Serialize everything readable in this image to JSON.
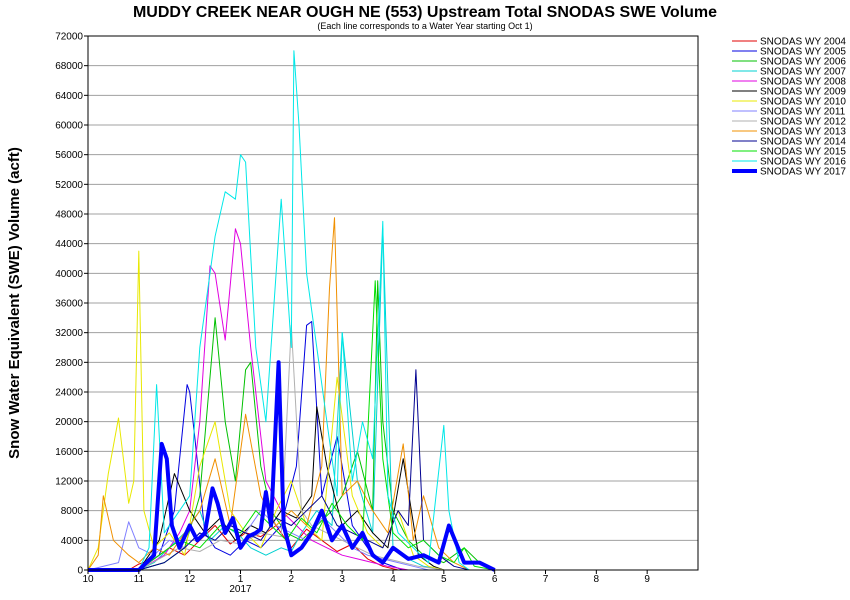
{
  "chart_data": {
    "type": "line",
    "title": "MUDDY CREEK NEAR OUGH NE (553) Upstream Total SNODAS SWE Volume",
    "subtitle": "(Each line corresponds to a Water Year starting Oct 1)",
    "ylabel": "Snow Water Equivalent (SWE) Volume (acft)",
    "xlabel": "",
    "year_label": "2017",
    "xlim": [
      10,
      22
    ],
    "ylim": [
      0,
      72000
    ],
    "x_ticks": [
      10,
      11,
      12,
      13,
      14,
      15,
      16,
      17,
      18,
      19,
      20,
      21
    ],
    "x_tick_labels": [
      "10",
      "11",
      "12",
      "1",
      "2",
      "3",
      "4",
      "5",
      "6",
      "7",
      "8",
      "9"
    ],
    "y_ticks": [
      0,
      4000,
      8000,
      12000,
      16000,
      20000,
      24000,
      28000,
      32000,
      36000,
      40000,
      44000,
      48000,
      52000,
      56000,
      60000,
      64000,
      68000,
      72000
    ],
    "grid": true,
    "legend_position": "right-top",
    "series": [
      {
        "name": "SNODAS WY 2004",
        "color": "#e00000",
        "width": 1,
        "x": [
          10.0,
          10.8,
          11.0,
          11.3,
          11.6,
          11.9,
          12.2,
          12.5,
          12.8,
          13.1,
          13.4,
          13.7,
          14.0,
          14.3,
          14.6,
          14.9,
          15.2,
          15.5,
          15.8,
          16.1,
          16.4,
          16.7,
          17.0
        ],
        "y": [
          0,
          0,
          800,
          1500,
          3000,
          2000,
          4000,
          6000,
          3500,
          5000,
          4500,
          6000,
          3000,
          5500,
          4000,
          2500,
          3500,
          1500,
          500,
          0,
          0,
          0,
          0
        ]
      },
      {
        "name": "SNODAS WY 2005",
        "color": "#0000e0",
        "width": 1,
        "x": [
          10.0,
          11.0,
          11.4,
          11.7,
          11.95,
          12.0,
          12.1,
          12.3,
          12.5,
          12.8,
          13.1,
          13.4,
          13.8,
          14.1,
          14.3,
          14.4,
          14.6,
          14.9,
          15.2,
          15.5,
          15.8,
          16.2,
          16.6,
          17.0
        ],
        "y": [
          0,
          0,
          2000,
          8000,
          25000,
          24000,
          18000,
          5000,
          3000,
          2000,
          4000,
          3000,
          6000,
          14000,
          33000,
          33500,
          10000,
          18000,
          6000,
          3000,
          1000,
          0,
          0,
          0
        ]
      },
      {
        "name": "SNODAS WY 2006",
        "color": "#00c000",
        "width": 1,
        "x": [
          10.0,
          11.0,
          11.5,
          11.9,
          12.2,
          12.5,
          12.7,
          12.9,
          13.1,
          13.2,
          13.4,
          13.6,
          13.9,
          14.2,
          14.5,
          14.8,
          15.0,
          15.3,
          15.6,
          15.7,
          15.8,
          16.0,
          16.3,
          16.6,
          17.0,
          17.4,
          17.7,
          18.0
        ],
        "y": [
          0,
          0,
          1000,
          3000,
          10000,
          34000,
          20000,
          12000,
          27000,
          28000,
          14000,
          8000,
          5000,
          4000,
          6000,
          8000,
          10000,
          16000,
          8000,
          39000,
          20000,
          8000,
          4000,
          2000,
          1000,
          3000,
          1000,
          0
        ]
      },
      {
        "name": "SNODAS WY 2007",
        "color": "#00d0d0",
        "width": 1,
        "x": [
          10.0,
          11.0,
          11.3,
          11.6,
          11.9,
          12.2,
          12.4,
          12.7,
          13.0,
          13.2,
          13.5,
          13.8,
          14.0,
          14.2,
          14.5,
          14.8,
          15.0,
          15.3,
          15.6,
          15.8,
          16.0,
          16.3,
          16.6,
          17.0
        ],
        "y": [
          0,
          0,
          1000,
          3000,
          5000,
          8000,
          4000,
          6000,
          4500,
          3000,
          2000,
          3000,
          2500,
          5000,
          8000,
          6000,
          32000,
          12000,
          5000,
          46000,
          3000,
          1500,
          500,
          0
        ]
      },
      {
        "name": "SNODAS WY 2008",
        "color": "#e000e0",
        "width": 1,
        "x": [
          10.0,
          11.0,
          11.5,
          11.8,
          12.0,
          12.2,
          12.4,
          12.5,
          12.7,
          12.9,
          13.0,
          13.2,
          13.5,
          13.8,
          14.1,
          14.4,
          14.7,
          15.0,
          15.3,
          15.6,
          15.9,
          16.3,
          16.7,
          17.0
        ],
        "y": [
          0,
          0,
          2000,
          5000,
          8000,
          20000,
          41000,
          40000,
          31000,
          46000,
          44000,
          30000,
          12000,
          8000,
          6000,
          4000,
          3000,
          2000,
          1500,
          1000,
          500,
          0,
          0,
          0
        ]
      },
      {
        "name": "SNODAS WY 2009",
        "color": "#000000",
        "width": 1,
        "x": [
          10.0,
          11.0,
          11.4,
          11.7,
          12.0,
          12.3,
          12.6,
          12.9,
          13.2,
          13.5,
          13.8,
          14.1,
          14.4,
          14.5,
          14.7,
          15.0,
          15.3,
          15.6,
          15.9,
          16.2,
          16.5,
          16.8,
          17.0
        ],
        "y": [
          0,
          0,
          4000,
          13000,
          8000,
          5000,
          7000,
          4000,
          6000,
          5000,
          8000,
          7000,
          10000,
          22000,
          14000,
          6000,
          8000,
          5000,
          3000,
          15000,
          2000,
          500,
          0
        ]
      },
      {
        "name": "SNODAS WY 2010",
        "color": "#e8e800",
        "width": 1,
        "x": [
          10.0,
          10.2,
          10.4,
          10.6,
          10.8,
          10.9,
          11.0,
          11.1,
          11.3,
          11.6,
          11.9,
          12.2,
          12.5,
          12.8,
          13.1,
          13.4,
          13.7,
          14.0,
          14.3,
          14.6,
          14.9,
          15.2,
          15.5,
          15.8,
          16.1,
          16.4,
          16.7,
          17.0
        ],
        "y": [
          0,
          3000,
          13000,
          20500,
          9000,
          12000,
          43000,
          8000,
          3000,
          5000,
          2000,
          14000,
          20000,
          8000,
          5000,
          3000,
          8000,
          12000,
          6000,
          4000,
          26000,
          10000,
          5000,
          3000,
          8000,
          2000,
          500,
          0
        ]
      },
      {
        "name": "SNODAS WY 2011",
        "color": "#8080ff",
        "width": 1,
        "x": [
          10.0,
          10.6,
          10.8,
          11.0,
          11.3,
          11.6,
          11.9,
          12.2,
          12.5,
          12.8,
          13.1,
          13.4,
          13.7,
          14.0,
          14.3,
          14.6,
          14.9,
          15.2,
          15.5,
          15.8,
          16.1,
          16.4,
          16.7,
          17.0
        ],
        "y": [
          0,
          1000,
          6500,
          3000,
          2000,
          4000,
          3000,
          5000,
          4000,
          6000,
          5000,
          8000,
          6000,
          5000,
          4000,
          7000,
          5000,
          3000,
          2000,
          1500,
          1000,
          500,
          0,
          0
        ]
      },
      {
        "name": "SNODAS WY 2012",
        "color": "#b0b0b0",
        "width": 1,
        "x": [
          10.0,
          11.0,
          11.4,
          11.8,
          12.2,
          12.6,
          13.0,
          13.4,
          13.8,
          14.0,
          14.2,
          14.4,
          14.7,
          15.0,
          15.3,
          15.6,
          15.9,
          16.2,
          16.5,
          17.0
        ],
        "y": [
          0,
          0,
          1500,
          3000,
          2500,
          4000,
          3500,
          5000,
          4500,
          33000,
          8000,
          6000,
          5000,
          4000,
          3000,
          2000,
          1500,
          1000,
          500,
          0
        ]
      },
      {
        "name": "SNODAS WY 2013",
        "color": "#f09000",
        "width": 1,
        "x": [
          10.0,
          10.2,
          10.3,
          10.5,
          10.8,
          11.0,
          11.3,
          11.6,
          11.9,
          12.2,
          12.5,
          12.8,
          13.1,
          13.4,
          13.7,
          14.0,
          14.3,
          14.6,
          14.75,
          14.85,
          15.0,
          15.3,
          15.6,
          15.9,
          16.2,
          16.4,
          16.6,
          16.9,
          17.2,
          17.5
        ],
        "y": [
          0,
          2000,
          10000,
          4000,
          2000,
          1000,
          3000,
          2000,
          5000,
          8000,
          15000,
          6000,
          21000,
          10000,
          6000,
          8000,
          6000,
          14000,
          38000,
          47500,
          10000,
          12000,
          8000,
          5000,
          17000,
          4000,
          10000,
          3000,
          1000,
          0
        ]
      },
      {
        "name": "SNODAS WY 2014",
        "color": "#000090",
        "width": 1,
        "x": [
          10.0,
          11.0,
          11.5,
          11.9,
          12.2,
          12.5,
          12.8,
          13.1,
          13.4,
          13.7,
          14.0,
          14.3,
          14.6,
          14.9,
          15.2,
          15.5,
          15.8,
          16.1,
          16.3,
          16.45,
          16.6,
          16.9,
          17.2,
          17.5
        ],
        "y": [
          0,
          0,
          1000,
          3000,
          5000,
          4000,
          6000,
          5000,
          4000,
          7000,
          6000,
          8000,
          10000,
          6000,
          5000,
          4000,
          3000,
          8000,
          6000,
          27000,
          4000,
          2000,
          500,
          0
        ]
      },
      {
        "name": "SNODAS WY 2015",
        "color": "#00e000",
        "width": 1,
        "x": [
          10.0,
          11.0,
          11.4,
          11.8,
          12.2,
          12.6,
          13.0,
          13.3,
          13.6,
          13.9,
          14.2,
          14.5,
          14.8,
          15.1,
          15.4,
          15.65,
          15.8,
          16.0,
          16.3,
          16.6,
          16.9,
          17.2,
          17.4,
          17.6,
          18.0
        ],
        "y": [
          0,
          0,
          2000,
          4000,
          3000,
          6000,
          5000,
          8000,
          6000,
          4000,
          7000,
          5000,
          9000,
          6000,
          4000,
          39000,
          15000,
          5000,
          3000,
          4000,
          2000,
          1000,
          3000,
          500,
          0
        ]
      },
      {
        "name": "SNODAS WY 2016",
        "color": "#00e8e8",
        "width": 1,
        "x": [
          10.0,
          11.0,
          11.2,
          11.35,
          11.5,
          11.8,
          12.0,
          12.2,
          12.5,
          12.7,
          12.9,
          13.0,
          13.1,
          13.3,
          13.5,
          13.8,
          14.0,
          14.05,
          14.15,
          14.3,
          14.5,
          14.7,
          14.9,
          15.0,
          15.2,
          15.4,
          15.6,
          15.8,
          15.9,
          16.1,
          16.4,
          16.7,
          17.0,
          17.1,
          17.3,
          17.5
        ],
        "y": [
          0,
          0,
          3000,
          25000,
          5000,
          8000,
          10000,
          30000,
          45000,
          51000,
          50000,
          56000,
          55000,
          30000,
          20000,
          50000,
          30000,
          70000,
          60000,
          40000,
          30000,
          20000,
          10000,
          32000,
          12000,
          20000,
          15000,
          47000,
          10000,
          5000,
          3000,
          1000,
          19500,
          8000,
          1000,
          0
        ]
      },
      {
        "name": "SNODAS WY 2017",
        "color": "#0000ff",
        "width": 4,
        "x": [
          10.0,
          11.0,
          11.3,
          11.45,
          11.55,
          11.65,
          11.8,
          12.0,
          12.15,
          12.3,
          12.45,
          12.55,
          12.7,
          12.85,
          13.0,
          13.15,
          13.3,
          13.4,
          13.5,
          13.6,
          13.75,
          13.85,
          14.0,
          14.2,
          14.4,
          14.6,
          14.8,
          15.0,
          15.2,
          15.4,
          15.6,
          15.8,
          16.0,
          16.3,
          16.6,
          16.9,
          17.1,
          17.4,
          17.7,
          18.0
        ],
        "y": [
          0,
          0,
          2000,
          17000,
          15000,
          6000,
          3000,
          6000,
          4000,
          5000,
          11000,
          9000,
          5000,
          7000,
          3000,
          4500,
          5000,
          5500,
          10500,
          6000,
          28000,
          6000,
          2000,
          3000,
          5000,
          8000,
          4000,
          6000,
          3000,
          5000,
          2000,
          1000,
          3000,
          1500,
          2000,
          1000,
          6000,
          1000,
          1000,
          0
        ]
      }
    ]
  }
}
